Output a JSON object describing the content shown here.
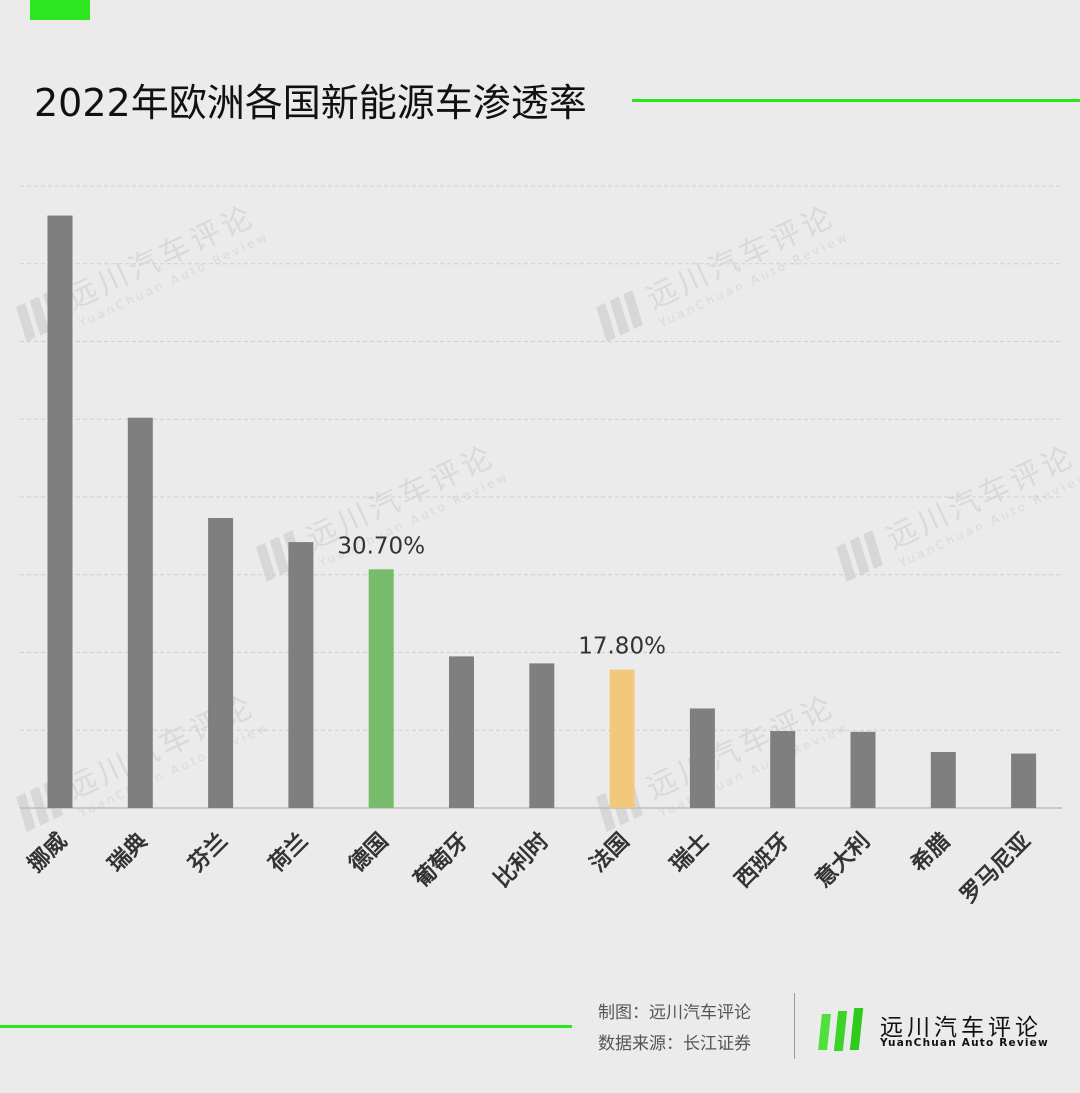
{
  "header": {
    "title": "2022年欧洲各国新能源车渗透率"
  },
  "watermark": {
    "cn": "远川汽车评论",
    "en": "YuanChuan  Auto  Review"
  },
  "footer": {
    "credit_line_1": "制图：远川汽车评论",
    "credit_line_2": "数据来源：长江证券",
    "brand_cn": "远川汽车评论",
    "brand_en": "YuanChuan   Auto   Review"
  },
  "colors": {
    "accent_green": "#2ee620",
    "bar_default": "#7f7f7f",
    "bar_germany": "#78bb6a",
    "bar_france": "#f2c97c",
    "background": "#ebebeb"
  },
  "chart_data": {
    "type": "bar",
    "title": "2022年欧洲各国新能源车渗透率",
    "xlabel": "",
    "ylabel": "",
    "categories": [
      "挪威",
      "瑞典",
      "芬兰",
      "荷兰",
      "德国",
      "葡萄牙",
      "比利时",
      "法国",
      "瑞士",
      "西班牙",
      "意大利",
      "希腊",
      "罗马尼亚"
    ],
    "values": [
      76.2,
      50.2,
      37.3,
      34.2,
      30.7,
      19.5,
      18.6,
      17.8,
      12.8,
      9.9,
      9.8,
      7.2,
      7.0
    ],
    "highlight_colors": [
      "bar_default",
      "bar_default",
      "bar_default",
      "bar_default",
      "bar_germany",
      "bar_default",
      "bar_default",
      "bar_france",
      "bar_default",
      "bar_default",
      "bar_default",
      "bar_default",
      "bar_default"
    ],
    "data_labels": [
      {
        "category": "德国",
        "text": "30.70%"
      },
      {
        "category": "法国",
        "text": "17.80%"
      }
    ],
    "ylim": [
      0,
      80
    ],
    "gridlines": true,
    "grid_step": 10,
    "axis_tick_labels_shown": false,
    "legend": "none"
  }
}
